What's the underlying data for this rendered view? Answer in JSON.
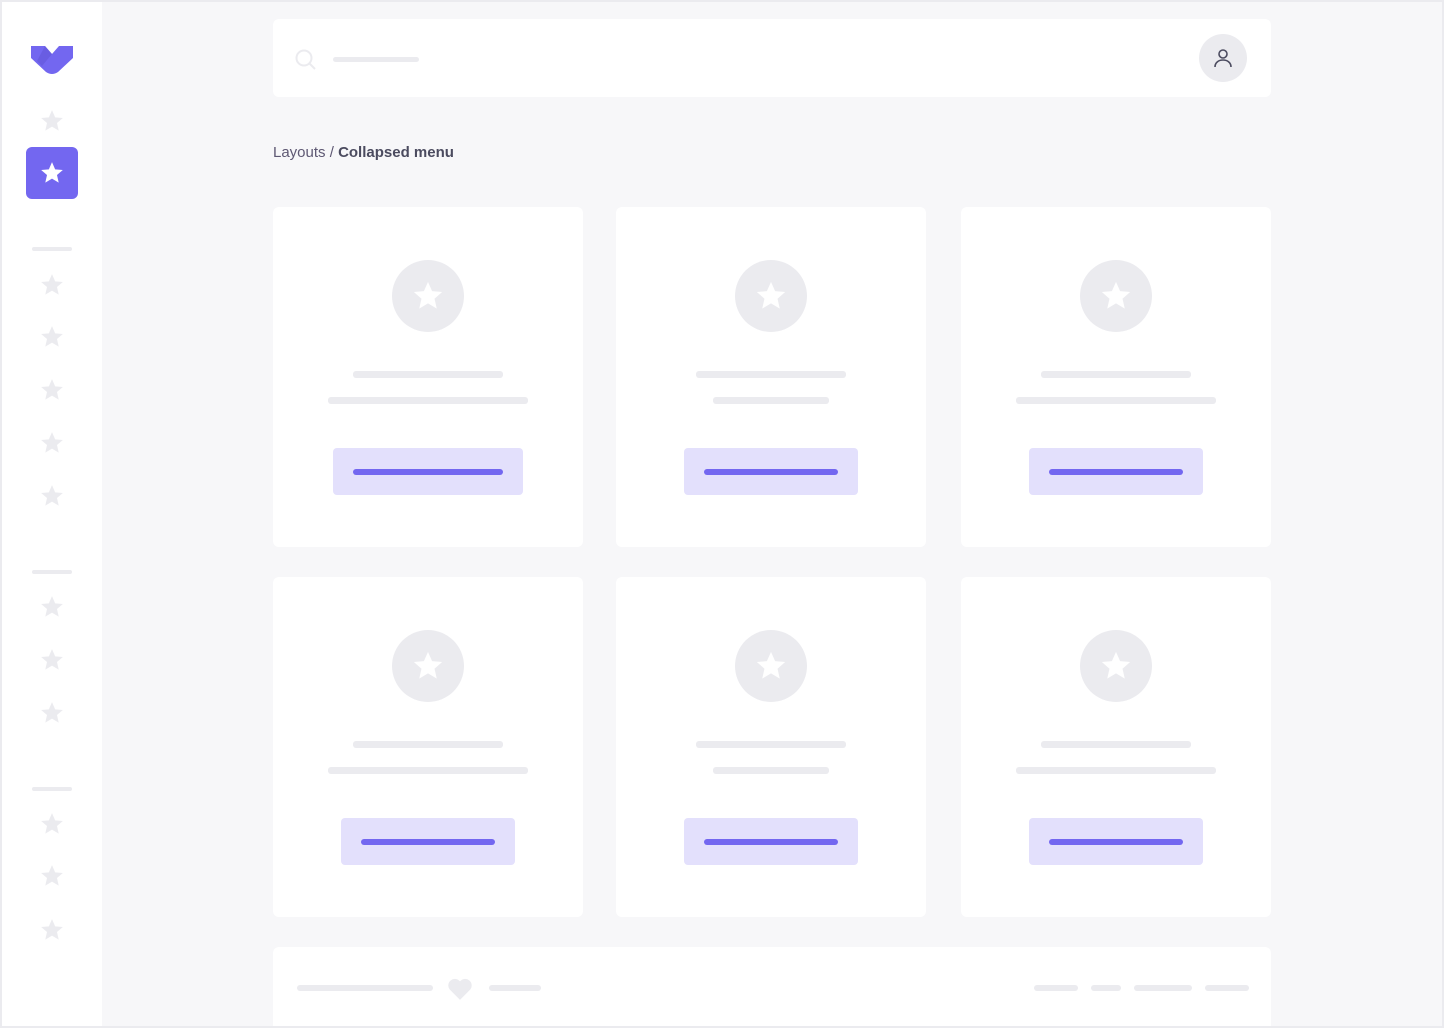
{
  "sidebar": {
    "logo": "logo-chevron",
    "accent": "#7367f0",
    "items_top": [
      "star"
    ],
    "active_item": "star",
    "groups": [
      5,
      3,
      3
    ]
  },
  "topbar": {
    "search_icon": "search-icon",
    "avatar_icon": "user-icon"
  },
  "breadcrumb": {
    "parent": "Layouts",
    "separator": " / ",
    "current": "Collapsed menu"
  },
  "cards": [
    {
      "icon": "star",
      "line_widths": [
        150,
        200
      ],
      "button_width": 190
    },
    {
      "icon": "star",
      "line_widths": [
        150,
        116
      ],
      "button_width": 174
    },
    {
      "icon": "star",
      "line_widths": [
        150,
        200
      ],
      "button_width": 174
    },
    {
      "icon": "star",
      "line_widths": [
        150,
        200
      ],
      "button_width": 174
    },
    {
      "icon": "star",
      "line_widths": [
        150,
        116
      ],
      "button_width": 174
    },
    {
      "icon": "star",
      "line_widths": [
        150,
        200
      ],
      "button_width": 174
    }
  ],
  "footer": {
    "icon": "heart-icon"
  }
}
